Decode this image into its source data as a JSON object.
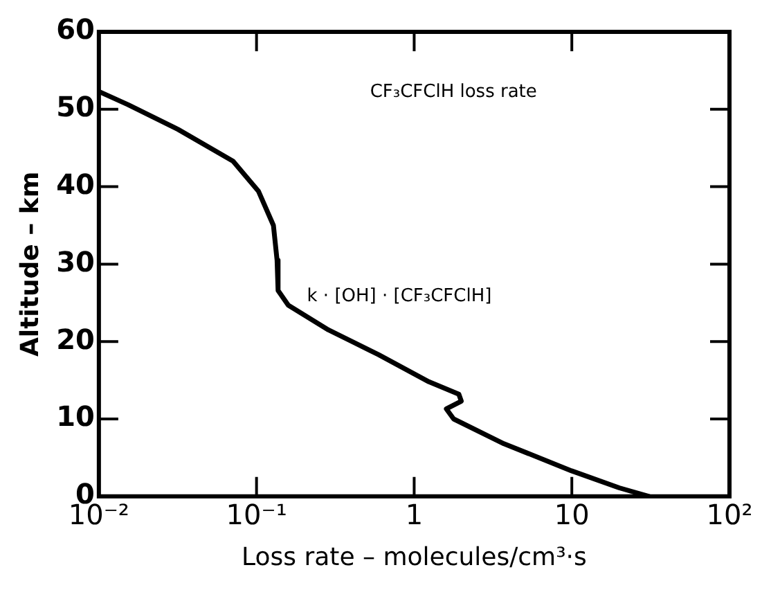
{
  "chart_data": {
    "type": "line",
    "xlabel": "Loss rate – molecules/cm³·s",
    "ylabel": "Altitude – km",
    "log": "x",
    "grid": false,
    "legend": false,
    "marker": "none",
    "line_style": "solid",
    "annotations": [
      "CF₃CFClH loss rate",
      "k · [OH] · [CF₃CFClH]"
    ],
    "xlim": [
      0.01,
      100
    ],
    "xticks": [
      {
        "value": 0.01,
        "label": "10⁻²"
      },
      {
        "value": 0.1,
        "label": "10⁻¹"
      },
      1,
      10,
      {
        "value": 100,
        "label": "10²"
      }
    ],
    "ylim": [
      0,
      60
    ],
    "yticks": [
      0,
      10,
      20,
      30,
      40,
      50,
      60
    ],
    "series": [
      {
        "color": "#000000",
        "x": [
          0.01,
          0.0153,
          0.0318,
          0.071,
          0.103,
          0.128,
          0.135,
          0.137,
          0.159,
          0.286,
          0.594,
          1.24,
          1.92,
          1.99,
          1.6,
          1.78,
          3.71,
          9.96,
          20,
          30.9
        ],
        "values": [
          52.3,
          50.6,
          47.4,
          43.3,
          39.4,
          35,
          30.5,
          26.6,
          24.7,
          21.5,
          18.3,
          14.8,
          13.2,
          12.3,
          11.3,
          10,
          6.8,
          3.3,
          1.1,
          0
        ]
      }
    ]
  }
}
